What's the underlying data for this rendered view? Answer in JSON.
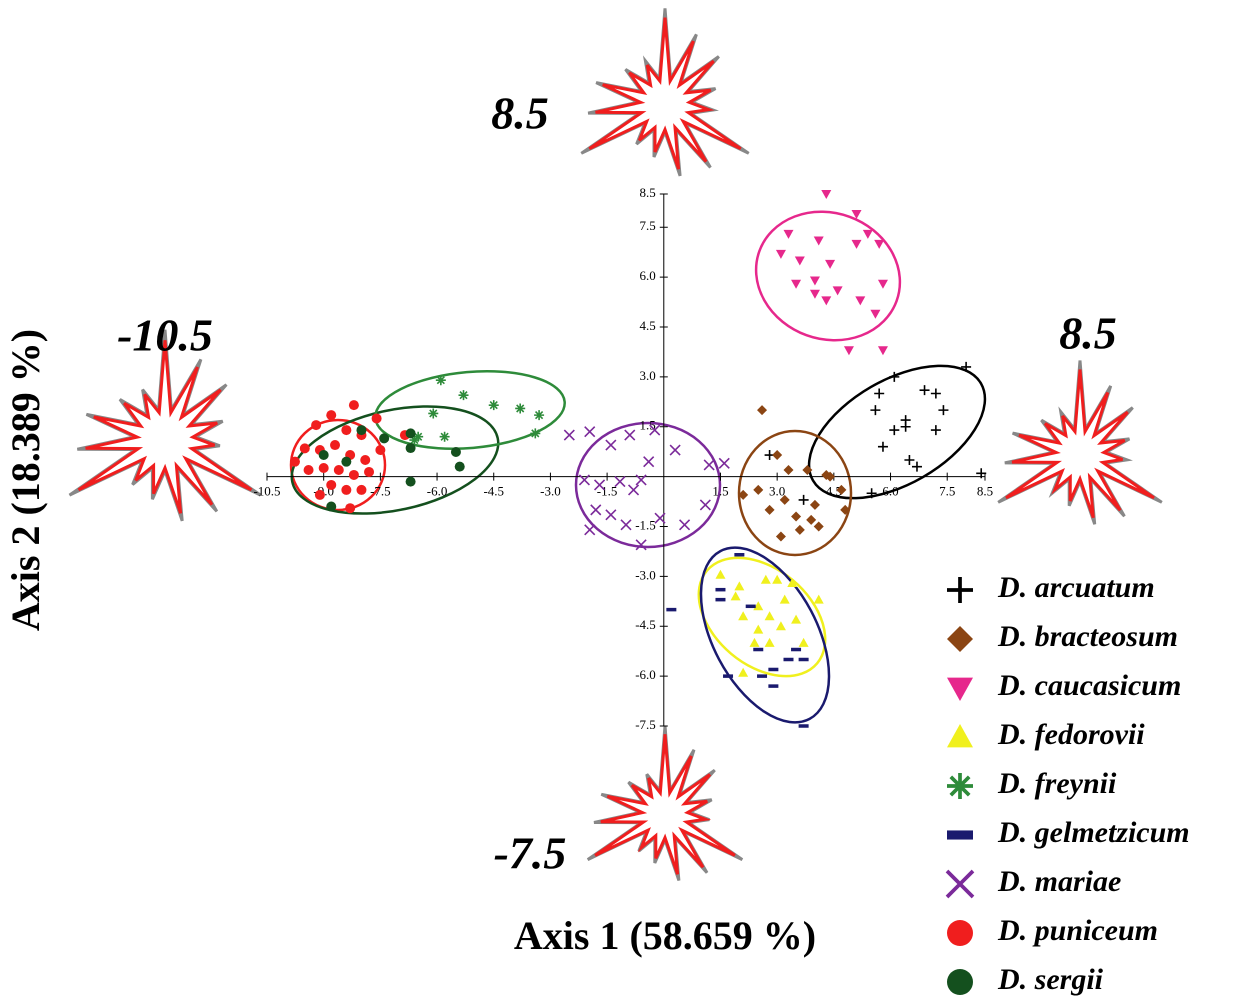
{
  "chart_data": {
    "type": "scatter",
    "x_label": "Axis 1 (58.659 %)",
    "y_label": "Axis 2 (18.389  %)",
    "annotations": [
      "8.5",
      "-10.5",
      "8.5",
      "-7.5"
    ],
    "xlim": [
      -10.5,
      8.5
    ],
    "ylim": [
      -7.5,
      8.5
    ],
    "xticks": [
      -10.5,
      {
        "value": -9,
        "label": "-9.0"
      },
      -7.5,
      {
        "value": -6,
        "label": "-6.0"
      },
      -4.5,
      {
        "value": -3,
        "label": "-3.0"
      },
      -1.5,
      1.5,
      {
        "value": 3,
        "label": "3.0"
      },
      4.5,
      {
        "value": 6,
        "label": "6.0"
      },
      7.5,
      8.5
    ],
    "yticks": [
      8.5,
      7.5,
      {
        "value": 6,
        "label": "6.0"
      },
      4.5,
      {
        "value": 3,
        "label": "3.0"
      },
      1.5,
      -1.5,
      {
        "value": -3,
        "label": "-3.0"
      },
      -4.5,
      {
        "value": -6,
        "label": "-6.0"
      },
      -7.5
    ],
    "legend": "lower right",
    "series": [
      {
        "name": "D. arcuatum",
        "color": "#000000",
        "marker": "plus",
        "x": [
          5.6,
          6.1,
          5.7,
          6.4,
          6.9,
          7.2,
          7.4,
          8.0,
          6.1,
          5.8,
          6.5,
          6.7,
          7.2,
          5.5,
          3.7,
          8.4,
          2.8,
          6.4
        ],
        "values": [
          2.0,
          3.0,
          2.5,
          1.7,
          2.6,
          2.5,
          2.0,
          3.3,
          1.4,
          0.9,
          0.5,
          0.3,
          1.4,
          -0.5,
          -0.7,
          0.1,
          0.65,
          1.5
        ]
      },
      {
        "name": "D. bracteosum",
        "color": "#8b4513",
        "marker": "diamond",
        "x": [
          2.6,
          3.0,
          3.3,
          3.8,
          4.3,
          4.4,
          2.5,
          2.1,
          2.8,
          3.2,
          3.5,
          3.9,
          3.6,
          4.1,
          4.7,
          4.8,
          3.1,
          4.0
        ],
        "values": [
          2.0,
          0.65,
          0.2,
          0.2,
          0.05,
          0,
          -0.4,
          -0.55,
          -1.0,
          -0.7,
          -1.2,
          -1.3,
          -1.6,
          -1.5,
          -0.4,
          -1.0,
          -1.8,
          -0.85
        ]
      },
      {
        "name": "D. caucasicum",
        "color": "#e6288c",
        "marker": "triangle-down",
        "x": [
          3.3,
          3.1,
          3.6,
          4.1,
          4.3,
          5.1,
          5.4,
          5.7,
          5.1,
          4.4,
          4.0,
          3.5,
          4.0,
          4.3,
          4.6,
          5.2,
          5.8,
          5.6,
          4.9,
          5.8
        ],
        "values": [
          7.3,
          6.7,
          6.5,
          7.1,
          8.5,
          7.9,
          7.3,
          7.0,
          7.0,
          6.4,
          5.9,
          5.8,
          5.5,
          5.3,
          5.6,
          5.3,
          5.8,
          4.9,
          3.8,
          3.8
        ]
      },
      {
        "name": "D. fedorovii",
        "color": "#f0f01e",
        "marker": "triangle-up",
        "x": [
          1.5,
          2.0,
          2.7,
          3.0,
          3.4,
          2.5,
          2.1,
          2.8,
          3.1,
          3.5,
          2.4,
          2.8,
          3.7,
          2.1,
          4.1,
          1.9,
          3.2,
          2.5
        ],
        "values": [
          -2.95,
          -3.3,
          -3.1,
          -3.1,
          -3.2,
          -3.9,
          -4.2,
          -4.2,
          -4.5,
          -4.3,
          -5.0,
          -5.0,
          -5.0,
          -5.9,
          -3.7,
          -3.6,
          -3.7,
          -4.6
        ]
      },
      {
        "name": "D. freynii",
        "color": "#2e8b3a",
        "marker": "asterisk",
        "x": [
          -5.9,
          -5.3,
          -4.5,
          -3.8,
          -3.3,
          -3.4,
          -6.1,
          -5.8,
          -6.6,
          -6.5
        ],
        "values": [
          2.9,
          2.45,
          2.15,
          2.05,
          1.85,
          1.3,
          1.9,
          1.2,
          1.1,
          1.2
        ]
      },
      {
        "name": "D. gelmetzicum",
        "color": "#1a1a6e",
        "marker": "dash",
        "x": [
          0.2,
          2.0,
          1.5,
          2.5,
          2.9,
          3.5,
          3.7,
          2.9,
          2.6,
          1.7,
          3.7,
          3.3,
          2.3,
          1.5
        ],
        "values": [
          -4.0,
          -2.35,
          -3.4,
          -5.2,
          -5.8,
          -5.2,
          -5.5,
          -6.3,
          -6.0,
          -6.0,
          -7.5,
          -5.5,
          -3.9,
          -3.7
        ]
      },
      {
        "name": "D. mariae",
        "color": "#7b2a9a",
        "marker": "cross",
        "x": [
          -2.5,
          -1.96,
          -1.4,
          -0.9,
          -0.24,
          0.3,
          1.2,
          1.6,
          -2.1,
          -1.7,
          -1.16,
          -0.8,
          -0.6,
          -1.8,
          -1.4,
          -1.0,
          -0.1,
          0.55,
          -0.6,
          -1.96,
          1.1,
          -0.4
        ],
        "values": [
          1.25,
          1.35,
          0.95,
          1.25,
          1.4,
          0.8,
          0.35,
          0.4,
          -0.1,
          -0.25,
          -0.15,
          -0.4,
          -0.1,
          -1.0,
          -1.15,
          -1.45,
          -1.25,
          -1.45,
          -2.05,
          -1.6,
          -0.85,
          0.45
        ]
      },
      {
        "name": "D. puniceum",
        "color": "#f01e1e",
        "marker": "circle",
        "x": [
          -9.76,
          -9.2,
          -8.8,
          -8.2,
          -8.4,
          -8.0,
          -7.6,
          -9.5,
          -9.1,
          -8.7,
          -8.3,
          -7.9,
          -7.5,
          -9.4,
          -9.0,
          -8.6,
          -8.2,
          -7.8,
          -8.8,
          -8.4,
          -8.0,
          -9.1,
          -8.3,
          -6.85
        ],
        "values": [
          0.45,
          1.55,
          1.85,
          2.15,
          1.4,
          1.25,
          1.75,
          0.85,
          0.8,
          0.95,
          0.65,
          0.5,
          0.8,
          0.2,
          0.26,
          0.2,
          0.05,
          0.14,
          -0.25,
          -0.4,
          -0.4,
          -0.55,
          -0.95,
          1.25
        ]
      },
      {
        "name": "D. sergii",
        "color": "#14501e",
        "marker": "circle",
        "x": [
          -8.8,
          -8.4,
          -8.0,
          -7.4,
          -6.7,
          -6.7,
          -5.5,
          -5.4,
          -6.7,
          -9.0
        ],
        "values": [
          -0.9,
          0.45,
          1.4,
          1.15,
          1.3,
          0.86,
          0.74,
          0.3,
          -0.15,
          0.65
        ]
      }
    ]
  }
}
